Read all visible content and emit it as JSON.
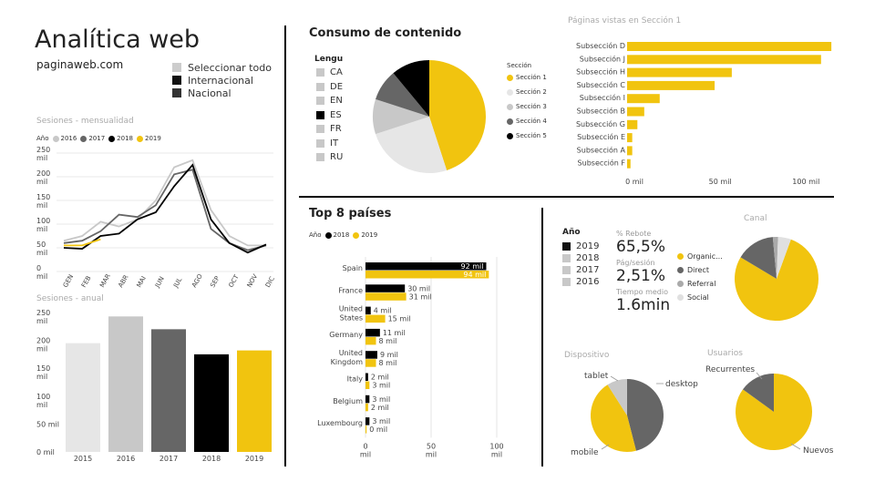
{
  "header": {
    "title": "Analítica web",
    "site": "paginaweb.com"
  },
  "filters": {
    "items": [
      {
        "label": "Seleccionar todo",
        "color": "#cccccc"
      },
      {
        "label": "Internacional",
        "color": "#111111"
      },
      {
        "label": "Nacional",
        "color": "#333333"
      }
    ]
  },
  "colors": {
    "yellow": "#f1c40f",
    "black": "#000000",
    "dark": "#666666",
    "mid": "#c8c8c8",
    "light": "#e6e6e6"
  },
  "sessions_monthly": {
    "title": "Sesiones - mensualidad",
    "legend_label": "Año",
    "chart_data": {
      "type": "line",
      "categories": [
        "GEN",
        "FEB",
        "MAR",
        "ABR",
        "MAI",
        "JUN",
        "JUL",
        "AGO",
        "SEP",
        "OCT",
        "NOV",
        "DIC"
      ],
      "ylim": [
        0,
        250
      ],
      "yticks": [
        "0 mil",
        "50 mil",
        "100 mil",
        "150 mil",
        "200 mil",
        "250 mil"
      ],
      "series": [
        {
          "name": "2016",
          "color": "#c8c8c8",
          "values": [
            65,
            75,
            105,
            95,
            110,
            150,
            220,
            235,
            130,
            75,
            55,
            55
          ]
        },
        {
          "name": "2017",
          "color": "#666666",
          "values": [
            60,
            65,
            85,
            120,
            115,
            140,
            205,
            215,
            90,
            60,
            45,
            55
          ]
        },
        {
          "name": "2018",
          "color": "#000000",
          "values": [
            50,
            48,
            75,
            80,
            110,
            125,
            180,
            225,
            110,
            60,
            40,
            57
          ]
        },
        {
          "name": "2019",
          "color": "#f1c40f",
          "values": [
            55,
            55,
            68,
            null,
            null,
            null,
            null,
            null,
            null,
            null,
            null,
            null
          ]
        }
      ]
    }
  },
  "sessions_annual": {
    "title": "Sesiones - anual",
    "chart_data": {
      "type": "bar",
      "categories": [
        "2015",
        "2016",
        "2017",
        "2018",
        "2019"
      ],
      "values": [
        195,
        243,
        220,
        175,
        182
      ],
      "colors": [
        "#e6e6e6",
        "#c8c8c8",
        "#666666",
        "#000000",
        "#f1c40f"
      ],
      "ylim": [
        0,
        250
      ],
      "yticks": [
        "0 mil",
        "50 mil",
        "100 mil",
        "150 mil",
        "200 mil",
        "250 mil"
      ]
    }
  },
  "content": {
    "title": "Consumo de contenido",
    "lang_title": "Lengu",
    "languages": [
      {
        "code": "CA",
        "color": "#c8c8c8"
      },
      {
        "code": "DE",
        "color": "#c8c8c8"
      },
      {
        "code": "EN",
        "color": "#c8c8c8"
      },
      {
        "code": "ES",
        "color": "#000000"
      },
      {
        "code": "FR",
        "color": "#c8c8c8"
      },
      {
        "code": "IT",
        "color": "#c8c8c8"
      },
      {
        "code": "RU",
        "color": "#c8c8c8"
      }
    ],
    "section_legend_title": "Sección",
    "chart_data": {
      "type": "pie",
      "labels": [
        "Sección 1",
        "Sección 2",
        "Sección 3",
        "Sección 4",
        "Sección 5"
      ],
      "values": [
        45,
        25,
        10,
        9,
        11
      ],
      "colors": [
        "#f1c40f",
        "#e6e6e6",
        "#c8c8c8",
        "#666666",
        "#000000"
      ]
    }
  },
  "pages_section": {
    "title": "Páginas vistas en Sección 1",
    "chart_data": {
      "type": "bar",
      "orientation": "horizontal",
      "categories": [
        "Subsección D",
        "Subsección J",
        "Subsección H",
        "Subsección C",
        "Subsección I",
        "Subsección B",
        "Subsección G",
        "Subsección E",
        "Subsección A",
        "Subsección F"
      ],
      "values": [
        119,
        113,
        61,
        51,
        19,
        10,
        6,
        3,
        3,
        2
      ],
      "xlim": [
        0,
        120
      ],
      "xticks": [
        {
          "v": 0,
          "label": "0 mil"
        },
        {
          "v": 50,
          "label": "50 mil"
        },
        {
          "v": 100,
          "label": "100 mil"
        }
      ]
    }
  },
  "countries": {
    "title": "Top 8 países",
    "legend_label": "Año",
    "chart_data": {
      "type": "bar",
      "orientation": "horizontal",
      "categories": [
        "Spain",
        "France",
        "United States",
        "Germany",
        "United Kingdom",
        "Italy",
        "Belgium",
        "Luxembourg"
      ],
      "series": [
        {
          "name": "2018",
          "color": "#000000",
          "values": [
            92,
            30,
            4,
            11,
            9,
            2,
            3,
            3
          ],
          "labels": [
            "92 mil",
            "30 mil",
            "4 mil",
            "11 mil",
            "9 mil",
            "2 mil",
            "3 mil",
            "3 mil"
          ]
        },
        {
          "name": "2019",
          "color": "#f1c40f",
          "values": [
            94,
            31,
            15,
            8,
            8,
            3,
            2,
            0
          ],
          "labels": [
            "94 mil",
            "31 mil",
            "15 mil",
            "8 mil",
            "8 mil",
            "3 mil",
            "2 mil",
            "0 mil"
          ]
        }
      ],
      "xlim": [
        0,
        100
      ],
      "xticks": [
        {
          "v": 0,
          "label": "0 mil"
        },
        {
          "v": 50,
          "label": "50 mil"
        },
        {
          "v": 100,
          "label": "100 mil"
        }
      ]
    }
  },
  "year_filter": {
    "title": "Año",
    "items": [
      {
        "label": "2019",
        "color": "#111111"
      },
      {
        "label": "2018",
        "color": "#c8c8c8"
      },
      {
        "label": "2017",
        "color": "#c8c8c8"
      },
      {
        "label": "2016",
        "color": "#c8c8c8"
      }
    ]
  },
  "kpis": {
    "bounce_label": "% Rebote",
    "bounce_value": "65,5%",
    "pages_label": "Pág/sesión",
    "pages_value": "2,51%",
    "time_label": "Tiempo medio",
    "time_value": "1.6min"
  },
  "channel": {
    "title": "Canal",
    "chart_data": {
      "type": "pie",
      "labels": [
        "Organic...",
        "Direct",
        "Referral",
        "Social"
      ],
      "values": [
        78,
        15,
        2,
        5
      ],
      "colors": [
        "#f1c40f",
        "#666666",
        "#aaaaaa",
        "#e0e0e0"
      ]
    }
  },
  "device": {
    "title": "Dispositivo",
    "chart_data": {
      "type": "pie",
      "labels": [
        "desktop",
        "mobile",
        "tablet"
      ],
      "values": [
        46,
        45,
        9
      ],
      "colors": [
        "#666666",
        "#f1c40f",
        "#c8c8c8"
      ]
    }
  },
  "users": {
    "title": "Usuarios",
    "chart_data": {
      "type": "pie",
      "labels": [
        "Nuevos",
        "Recurrentes"
      ],
      "values": [
        85,
        15
      ],
      "colors": [
        "#f1c40f",
        "#666666"
      ]
    }
  }
}
